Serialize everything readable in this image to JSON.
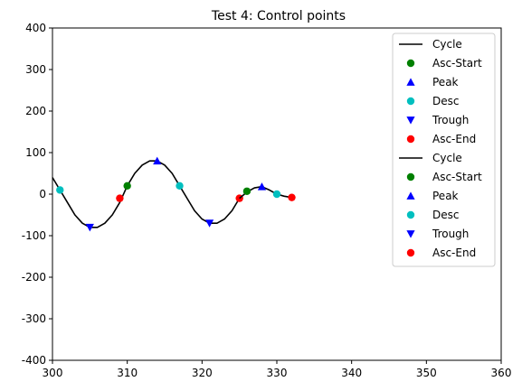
{
  "chart_data": {
    "type": "line",
    "title": "Test 4: Control points",
    "xlabel": "",
    "ylabel": "",
    "xlim": [
      300,
      360
    ],
    "ylim": [
      -400,
      400
    ],
    "xticks": [
      300,
      310,
      320,
      330,
      340,
      350,
      360
    ],
    "yticks": [
      -400,
      -300,
      -200,
      -100,
      0,
      100,
      200,
      300,
      400
    ],
    "grid": false,
    "legend_position": "top-right",
    "series": [
      {
        "name": "Cycle",
        "kind": "line",
        "color": "#000000",
        "x": [
          300,
          301,
          302,
          303,
          304,
          305,
          306,
          307,
          308,
          309,
          310,
          311,
          312,
          313,
          314,
          315,
          316,
          317,
          318,
          319,
          320,
          321,
          322,
          323,
          324,
          325
        ],
        "y": [
          40,
          10,
          -20,
          -50,
          -70,
          -80,
          -80,
          -70,
          -50,
          -20,
          20,
          50,
          70,
          80,
          80,
          70,
          50,
          20,
          -10,
          -40,
          -60,
          -70,
          -70,
          -60,
          -40,
          -10
        ]
      },
      {
        "name": "Asc-Start",
        "kind": "marker",
        "marker": "circle",
        "color": "#008000",
        "x": [
          310
        ],
        "y": [
          20
        ]
      },
      {
        "name": "Peak",
        "kind": "marker",
        "marker": "triangle-up",
        "color": "#0000ff",
        "x": [
          314
        ],
        "y": [
          80
        ]
      },
      {
        "name": "Desc",
        "kind": "marker",
        "marker": "circle",
        "color": "#00bfbf",
        "x": [
          301,
          317
        ],
        "y": [
          10,
          20
        ]
      },
      {
        "name": "Trough",
        "kind": "marker",
        "marker": "triangle-down",
        "color": "#0000ff",
        "x": [
          305,
          321
        ],
        "y": [
          -80,
          -70
        ]
      },
      {
        "name": "Asc-End",
        "kind": "marker",
        "marker": "circle",
        "color": "#ff0000",
        "x": [
          309,
          325
        ],
        "y": [
          -10,
          -10
        ]
      },
      {
        "name": "Cycle",
        "kind": "line",
        "color": "#000000",
        "x": [
          325,
          326,
          327,
          328,
          329,
          330,
          331,
          332
        ],
        "y": [
          -10,
          5,
          15,
          18,
          10,
          0,
          -5,
          -8
        ]
      },
      {
        "name": "Asc-Start",
        "kind": "marker",
        "marker": "circle",
        "color": "#008000",
        "x": [
          326
        ],
        "y": [
          7
        ]
      },
      {
        "name": "Peak",
        "kind": "marker",
        "marker": "triangle-up",
        "color": "#0000ff",
        "x": [
          328
        ],
        "y": [
          18
        ]
      },
      {
        "name": "Desc",
        "kind": "marker",
        "marker": "circle",
        "color": "#00bfbf",
        "x": [
          330
        ],
        "y": [
          0
        ]
      },
      {
        "name": "Trough",
        "kind": "marker",
        "marker": "triangle-down",
        "color": "#0000ff",
        "x": [],
        "y": []
      },
      {
        "name": "Asc-End",
        "kind": "marker",
        "marker": "circle",
        "color": "#ff0000",
        "x": [
          332
        ],
        "y": [
          -8
        ]
      }
    ]
  }
}
